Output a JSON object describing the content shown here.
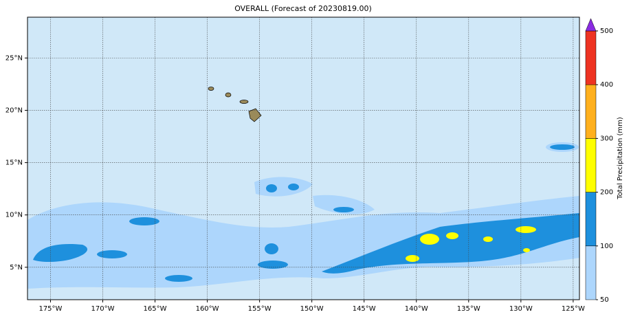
{
  "title": "OVERALL (Forecast of 20230819.00)",
  "map": {
    "xlim": [
      -177.2,
      -124.4
    ],
    "ylim": [
      1.9,
      28.9
    ],
    "xticks": [
      {
        "value": -175,
        "label": "175°W"
      },
      {
        "value": -170,
        "label": "170°W"
      },
      {
        "value": -165,
        "label": "165°W"
      },
      {
        "value": -160,
        "label": "160°W"
      },
      {
        "value": -155,
        "label": "155°W"
      },
      {
        "value": -150,
        "label": "150°W"
      },
      {
        "value": -145,
        "label": "145°W"
      },
      {
        "value": -140,
        "label": "140°W"
      },
      {
        "value": -135,
        "label": "135°W"
      },
      {
        "value": -130,
        "label": "130°W"
      },
      {
        "value": -125,
        "label": "125°W"
      }
    ],
    "yticks": [
      {
        "value": 5,
        "label": "5°N"
      },
      {
        "value": 10,
        "label": "10°N"
      },
      {
        "value": 15,
        "label": "15°N"
      },
      {
        "value": 20,
        "label": "20°N"
      },
      {
        "value": 25,
        "label": "25°N"
      }
    ],
    "grid": true
  },
  "colorbar": {
    "label": "Total Precipitation (mm)",
    "levels": [
      50,
      100,
      200,
      300,
      400,
      500
    ],
    "colors": [
      "#add6fc",
      "#1e90dd",
      "#ffff00",
      "#ffb01e",
      "#ee3322"
    ],
    "extend_color": "#8a2be2"
  }
}
